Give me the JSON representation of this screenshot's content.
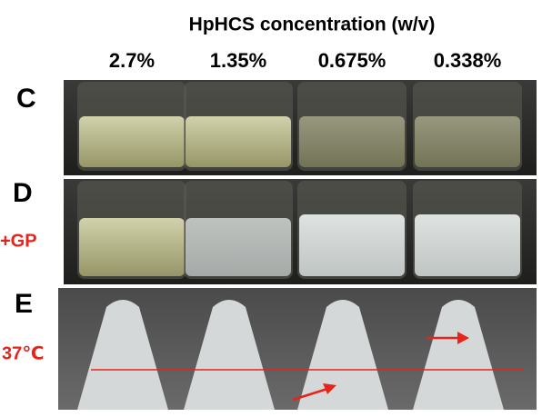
{
  "header": {
    "title": "HpHCS concentration (w/v)",
    "columns": [
      "2.7%",
      "1.35%",
      "0.675%",
      "0.338%"
    ]
  },
  "rows": [
    {
      "label": "C"
    },
    {
      "label": "D",
      "note": "+GP"
    },
    {
      "label": "E",
      "note": "37℃"
    }
  ]
}
